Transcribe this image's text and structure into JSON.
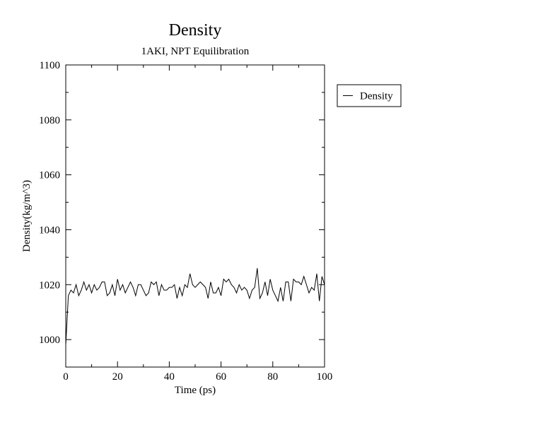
{
  "chart_data": {
    "type": "line",
    "title": "Density",
    "subtitle": "1AKI, NPT Equilibration",
    "x_label": "Time (ps)",
    "y_label": "Density(kg/m^3)",
    "x": [
      0,
      1,
      2,
      3,
      4,
      5,
      6,
      7,
      8,
      9,
      10,
      11,
      12,
      13,
      14,
      15,
      16,
      17,
      18,
      19,
      20,
      21,
      22,
      23,
      24,
      25,
      26,
      27,
      28,
      29,
      30,
      31,
      32,
      33,
      34,
      35,
      36,
      37,
      38,
      39,
      40,
      41,
      42,
      43,
      44,
      45,
      46,
      47,
      48,
      49,
      50,
      51,
      52,
      53,
      54,
      55,
      56,
      57,
      58,
      59,
      60,
      61,
      62,
      63,
      64,
      65,
      66,
      67,
      68,
      69,
      70,
      71,
      72,
      73,
      74,
      75,
      76,
      77,
      78,
      79,
      80,
      81,
      82,
      83,
      84,
      85,
      86,
      87,
      88,
      89,
      90,
      91,
      92,
      93,
      94,
      95,
      96,
      97,
      98,
      99,
      100
    ],
    "series": [
      {
        "name": "Density",
        "color": "#000000",
        "values": [
          998,
          1016,
          1018,
          1017,
          1020,
          1016,
          1018,
          1021,
          1018,
          1020,
          1017,
          1020,
          1018,
          1019,
          1021,
          1021,
          1016,
          1017,
          1020,
          1016,
          1022,
          1018,
          1020,
          1017,
          1019,
          1021,
          1019,
          1016,
          1020,
          1020,
          1018,
          1016,
          1017,
          1021,
          1020,
          1021,
          1016,
          1020,
          1018,
          1018,
          1019,
          1019,
          1020,
          1015,
          1019,
          1016,
          1020,
          1019,
          1024,
          1020,
          1019,
          1020,
          1021,
          1020,
          1019,
          1015,
          1021,
          1017,
          1017,
          1019,
          1016,
          1022,
          1021,
          1022,
          1020,
          1019,
          1017,
          1020,
          1018,
          1019,
          1018,
          1015,
          1018,
          1019,
          1026,
          1015,
          1017,
          1021,
          1016,
          1022,
          1018,
          1016,
          1014,
          1019,
          1014,
          1021,
          1021,
          1014,
          1022,
          1021,
          1021,
          1020,
          1023,
          1020,
          1017,
          1019,
          1018,
          1024,
          1014,
          1023,
          1020
        ]
      }
    ],
    "xlim": [
      0,
      100
    ],
    "ylim": [
      990,
      1100
    ],
    "xticks": [
      0,
      20,
      40,
      60,
      80,
      100
    ],
    "yticks": [
      1000,
      1020,
      1040,
      1060,
      1080,
      1100
    ],
    "xminorticks": [
      10,
      30,
      50,
      70,
      90
    ],
    "yminorticks": [
      1010,
      1030,
      1050,
      1070,
      1090
    ],
    "grid": false,
    "legend": "right"
  }
}
